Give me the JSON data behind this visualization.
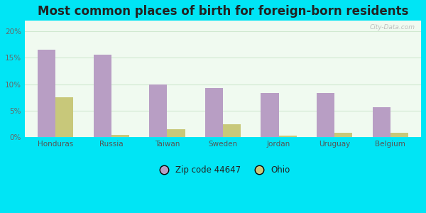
{
  "title": "Most common places of birth for foreign-born residents",
  "categories": [
    "Honduras",
    "Russia",
    "Taiwan",
    "Sweden",
    "Jordan",
    "Uruguay",
    "Belgium"
  ],
  "zip_values": [
    16.5,
    15.6,
    10.0,
    9.3,
    8.3,
    8.4,
    5.7
  ],
  "ohio_values": [
    7.6,
    0.4,
    1.5,
    2.5,
    0.3,
    0.8,
    0.8
  ],
  "zip_color": "#b89ec4",
  "ohio_color": "#c8c87a",
  "background_outer": "#00e5f5",
  "background_inner": "#f0faf0",
  "grid_color": "#d0e8d0",
  "title_fontsize": 12,
  "tick_fontsize": 7.5,
  "legend_label_zip": "Zip code 44647",
  "legend_label_ohio": "Ohio",
  "ylim": [
    0,
    22
  ],
  "yticks": [
    0,
    5,
    10,
    15,
    20
  ],
  "bar_width": 0.32,
  "watermark": "City-Data.com"
}
